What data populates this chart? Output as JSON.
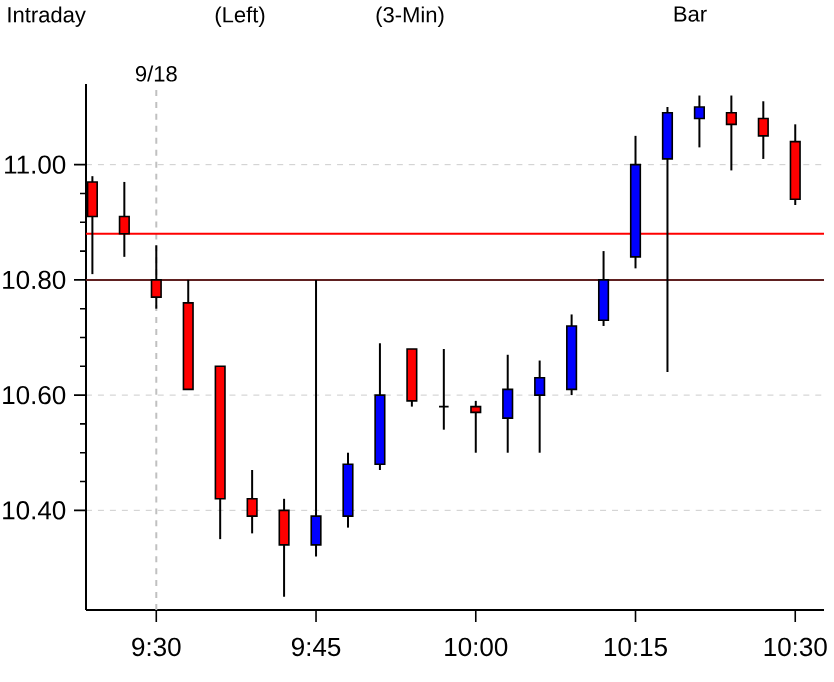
{
  "chart_data": {
    "type": "candlestick",
    "title": "Intraday",
    "annotations": [
      "(Left)",
      "(3-Min)",
      "Bar"
    ],
    "x": [
      9.4,
      9.45,
      9.5,
      9.55,
      9.6,
      9.65,
      9.7,
      9.75,
      9.8,
      9.85,
      9.9,
      9.95,
      10.0,
      10.05,
      10.1,
      10.15,
      10.2,
      10.25,
      10.3,
      10.35,
      10.4,
      10.45,
      10.5
    ],
    "ohlc": [
      [
        10.97,
        10.98,
        10.81,
        10.91
      ],
      [
        10.91,
        10.97,
        10.84,
        10.88
      ],
      [
        10.8,
        10.86,
        10.75,
        10.77
      ],
      [
        10.76,
        10.8,
        10.61,
        10.61
      ],
      [
        10.65,
        10.65,
        10.35,
        10.42
      ],
      [
        10.42,
        10.47,
        10.36,
        10.39
      ],
      [
        10.4,
        10.42,
        10.25,
        10.34
      ],
      [
        10.34,
        10.8,
        10.32,
        10.39
      ],
      [
        10.39,
        10.5,
        10.37,
        10.48
      ],
      [
        10.48,
        10.69,
        10.47,
        10.6
      ],
      [
        10.68,
        10.68,
        10.58,
        10.59
      ],
      [
        10.58,
        10.68,
        10.54,
        10.58
      ],
      [
        10.58,
        10.59,
        10.5,
        10.57
      ],
      [
        10.56,
        10.67,
        10.5,
        10.61
      ],
      [
        10.6,
        10.66,
        10.5,
        10.63
      ],
      [
        10.61,
        10.74,
        10.6,
        10.72
      ],
      [
        10.73,
        10.85,
        10.72,
        10.8
      ],
      [
        10.84,
        11.05,
        10.82,
        11.0
      ],
      [
        11.01,
        11.1,
        10.64,
        11.09
      ],
      [
        11.08,
        11.12,
        11.03,
        11.1
      ],
      [
        11.09,
        11.12,
        10.99,
        11.07
      ],
      [
        11.08,
        11.11,
        11.01,
        11.05
      ],
      [
        11.04,
        11.07,
        10.93,
        10.94
      ]
    ],
    "xlim": [
      9.39,
      10.545
    ],
    "ylim": [
      10.227,
      11.14
    ],
    "xticks": [
      {
        "value": 9.5,
        "label": "9:30"
      },
      {
        "value": 9.75,
        "label": "9:45"
      },
      {
        "value": 10.0,
        "label": "10:00"
      },
      {
        "value": 10.25,
        "label": "10:15"
      },
      {
        "value": 10.5,
        "label": "10:30"
      }
    ],
    "yticks": [
      {
        "value": 10.4,
        "label": "10.40"
      },
      {
        "value": 10.6,
        "label": "10.60"
      },
      {
        "value": 10.8,
        "label": "10.80"
      },
      {
        "value": 11.0,
        "label": "11.00"
      }
    ],
    "grid": "y",
    "ref_lines": [
      {
        "axis": "x",
        "value": 9.5,
        "label": "9/18",
        "color": "#c0c0c0",
        "line_style": "dashed"
      },
      {
        "axis": "y",
        "value": 10.88,
        "color": "#ff0000",
        "line_style": "solid"
      },
      {
        "axis": "y",
        "value": 10.8,
        "color": "#602020",
        "line_style": "solid"
      }
    ]
  }
}
